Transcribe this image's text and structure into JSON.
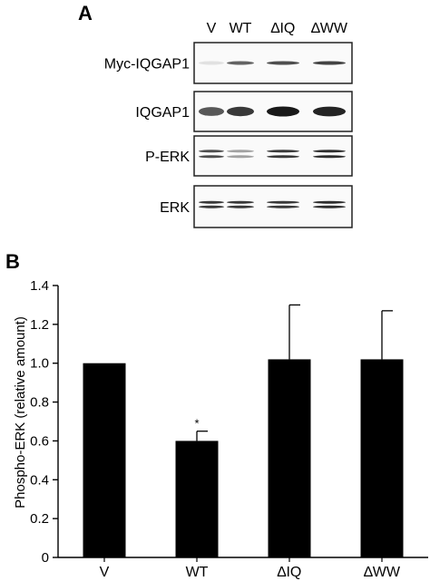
{
  "panel_a": {
    "label": "A",
    "lanes": [
      "V",
      "WT",
      "∆IQ",
      "∆WW"
    ],
    "blots": [
      {
        "name": "Myc-IQGAP1",
        "lanes_intensity": [
          0.05,
          0.65,
          0.75,
          0.8
        ]
      },
      {
        "name": "IQGAP1",
        "lanes_intensity": [
          0.7,
          0.85,
          1.0,
          0.95
        ]
      },
      {
        "name": "P-ERK",
        "lanes_intensity": [
          0.75,
          0.35,
          0.85,
          0.9
        ]
      },
      {
        "name": "ERK",
        "lanes_intensity": [
          0.85,
          0.85,
          0.85,
          0.9
        ]
      }
    ]
  },
  "panel_b": {
    "label": "B"
  },
  "chart_data": {
    "type": "bar",
    "categories": [
      "V",
      "WT",
      "∆IQ",
      "∆WW"
    ],
    "values": [
      1.0,
      0.6,
      1.02,
      1.02
    ],
    "error_upper": [
      0.0,
      0.05,
      0.28,
      0.25
    ],
    "annotations": [
      "",
      "*",
      "",
      ""
    ],
    "ylabel": "Phospho-ERK (relative amount)",
    "xlabel": "",
    "ylim": [
      0,
      1.4
    ],
    "yticks": [
      "0",
      "0.2",
      "0.4",
      "0.6",
      "0.8",
      "1.0",
      "1.2",
      "1.4"
    ],
    "grid": false,
    "bar_color": "#000000"
  }
}
